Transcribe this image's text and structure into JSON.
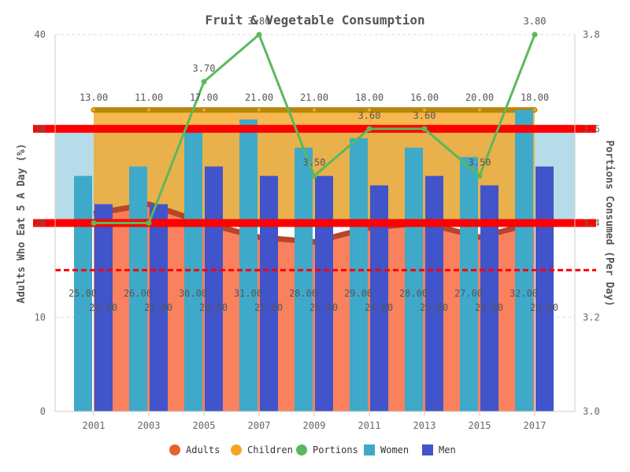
{
  "chart_data": {
    "type": "bar",
    "title": "Fruit & Vegetable Consumption",
    "ylabel": "Adults Who Eat 5 A Day (%)",
    "ylabel_right": "Portions Consumed (Per Day)",
    "ylim": [
      0,
      40
    ],
    "ylim_right": [
      3.0,
      3.8
    ],
    "yticks": [
      "0",
      "10",
      "20",
      "30",
      "40"
    ],
    "yticks_right": [
      "3.0",
      "3.2",
      "3.4",
      "3.6",
      "3.8"
    ],
    "categories": [
      "2001",
      "2003",
      "2005",
      "2007",
      "2009",
      "2011",
      "2013",
      "2015",
      "2017"
    ],
    "series": [
      {
        "name": "Adults",
        "type": "area",
        "axis": "left",
        "color": "#fa7a55",
        "values": [
          21,
          22,
          20,
          18.5,
          18,
          19.5,
          20,
          18.5,
          20
        ]
      },
      {
        "name": "Children",
        "type": "box",
        "axis": "left",
        "color": "#f5a623",
        "values": [
          13,
          11,
          17,
          21,
          21,
          18,
          16,
          20,
          18
        ],
        "labels": [
          "13.00",
          "11.00",
          "17.00",
          "21.00",
          "21.00",
          "18.00",
          "16.00",
          "20.00",
          "18.00"
        ]
      },
      {
        "name": "Portions",
        "type": "line",
        "axis": "right",
        "color": "#5cb85c",
        "values": [
          3.4,
          3.4,
          3.7,
          3.8,
          3.5,
          3.6,
          3.6,
          3.5,
          3.8
        ],
        "labels": [
          "",
          "",
          "3.70",
          "3.80",
          "3.50",
          "3.60",
          "3.60",
          "3.50",
          "3.80"
        ]
      },
      {
        "name": "Women",
        "type": "bar",
        "axis": "left",
        "color": "#3fa9c9",
        "values": [
          25,
          26,
          30,
          31,
          28,
          29,
          28,
          27,
          32
        ],
        "labels": [
          "25.00",
          "26.00",
          "30.00",
          "31.00",
          "28.00",
          "29.00",
          "28.00",
          "27.00",
          "32.00"
        ]
      },
      {
        "name": "Men",
        "type": "bar",
        "axis": "left",
        "color": "#4154c9",
        "values": [
          22,
          22,
          26,
          25,
          25,
          24,
          25,
          24,
          26
        ],
        "labels": [
          "22.00",
          "22.00",
          "26.00",
          "25.00",
          "25.00",
          "24.00",
          "25.00",
          "24.00",
          "26.00"
        ]
      }
    ],
    "reference_band": {
      "from": 20,
      "to": 30,
      "color": "#add8e6"
    },
    "reference_lines": [
      {
        "value": 30,
        "color": "#ff0000",
        "style": "solid"
      },
      {
        "value": 20,
        "color": "#ff0000",
        "style": "solid"
      },
      {
        "value": 15,
        "color": "#ff0000",
        "style": "dashed"
      }
    ],
    "grid": true,
    "legend_position": "bottom"
  }
}
